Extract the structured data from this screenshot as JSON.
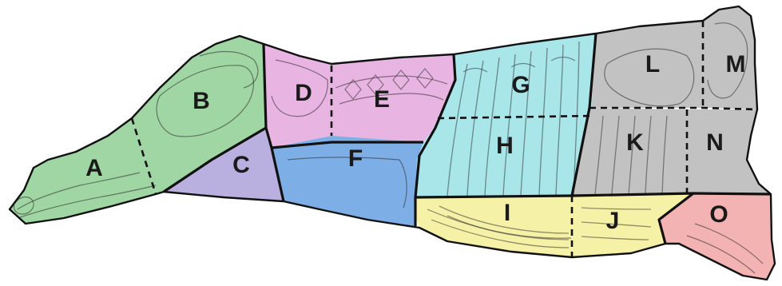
{
  "regions": [
    {
      "id": "A",
      "label": "A",
      "color": "#9fd6a3"
    },
    {
      "id": "B",
      "label": "B",
      "color": "#9fd6a3"
    },
    {
      "id": "C",
      "label": "C",
      "color": "#b9b0e0"
    },
    {
      "id": "D",
      "label": "D",
      "color": "#e8b4e2"
    },
    {
      "id": "E",
      "label": "E",
      "color": "#e8b4e2"
    },
    {
      "id": "F",
      "label": "F",
      "color": "#7eaee6"
    },
    {
      "id": "G",
      "label": "G",
      "color": "#a8e6ea"
    },
    {
      "id": "H",
      "label": "H",
      "color": "#a8e6ea"
    },
    {
      "id": "I",
      "label": "I",
      "color": "#f5f1a6"
    },
    {
      "id": "J",
      "label": "J",
      "color": "#f5f1a6"
    },
    {
      "id": "K",
      "label": "K",
      "color": "#c2c2c2"
    },
    {
      "id": "L",
      "label": "L",
      "color": "#c2c2c2"
    },
    {
      "id": "M",
      "label": "M",
      "color": "#c2c2c2"
    },
    {
      "id": "N",
      "label": "N",
      "color": "#c2c2c2"
    },
    {
      "id": "O",
      "label": "O",
      "color": "#f4b3b3"
    }
  ]
}
